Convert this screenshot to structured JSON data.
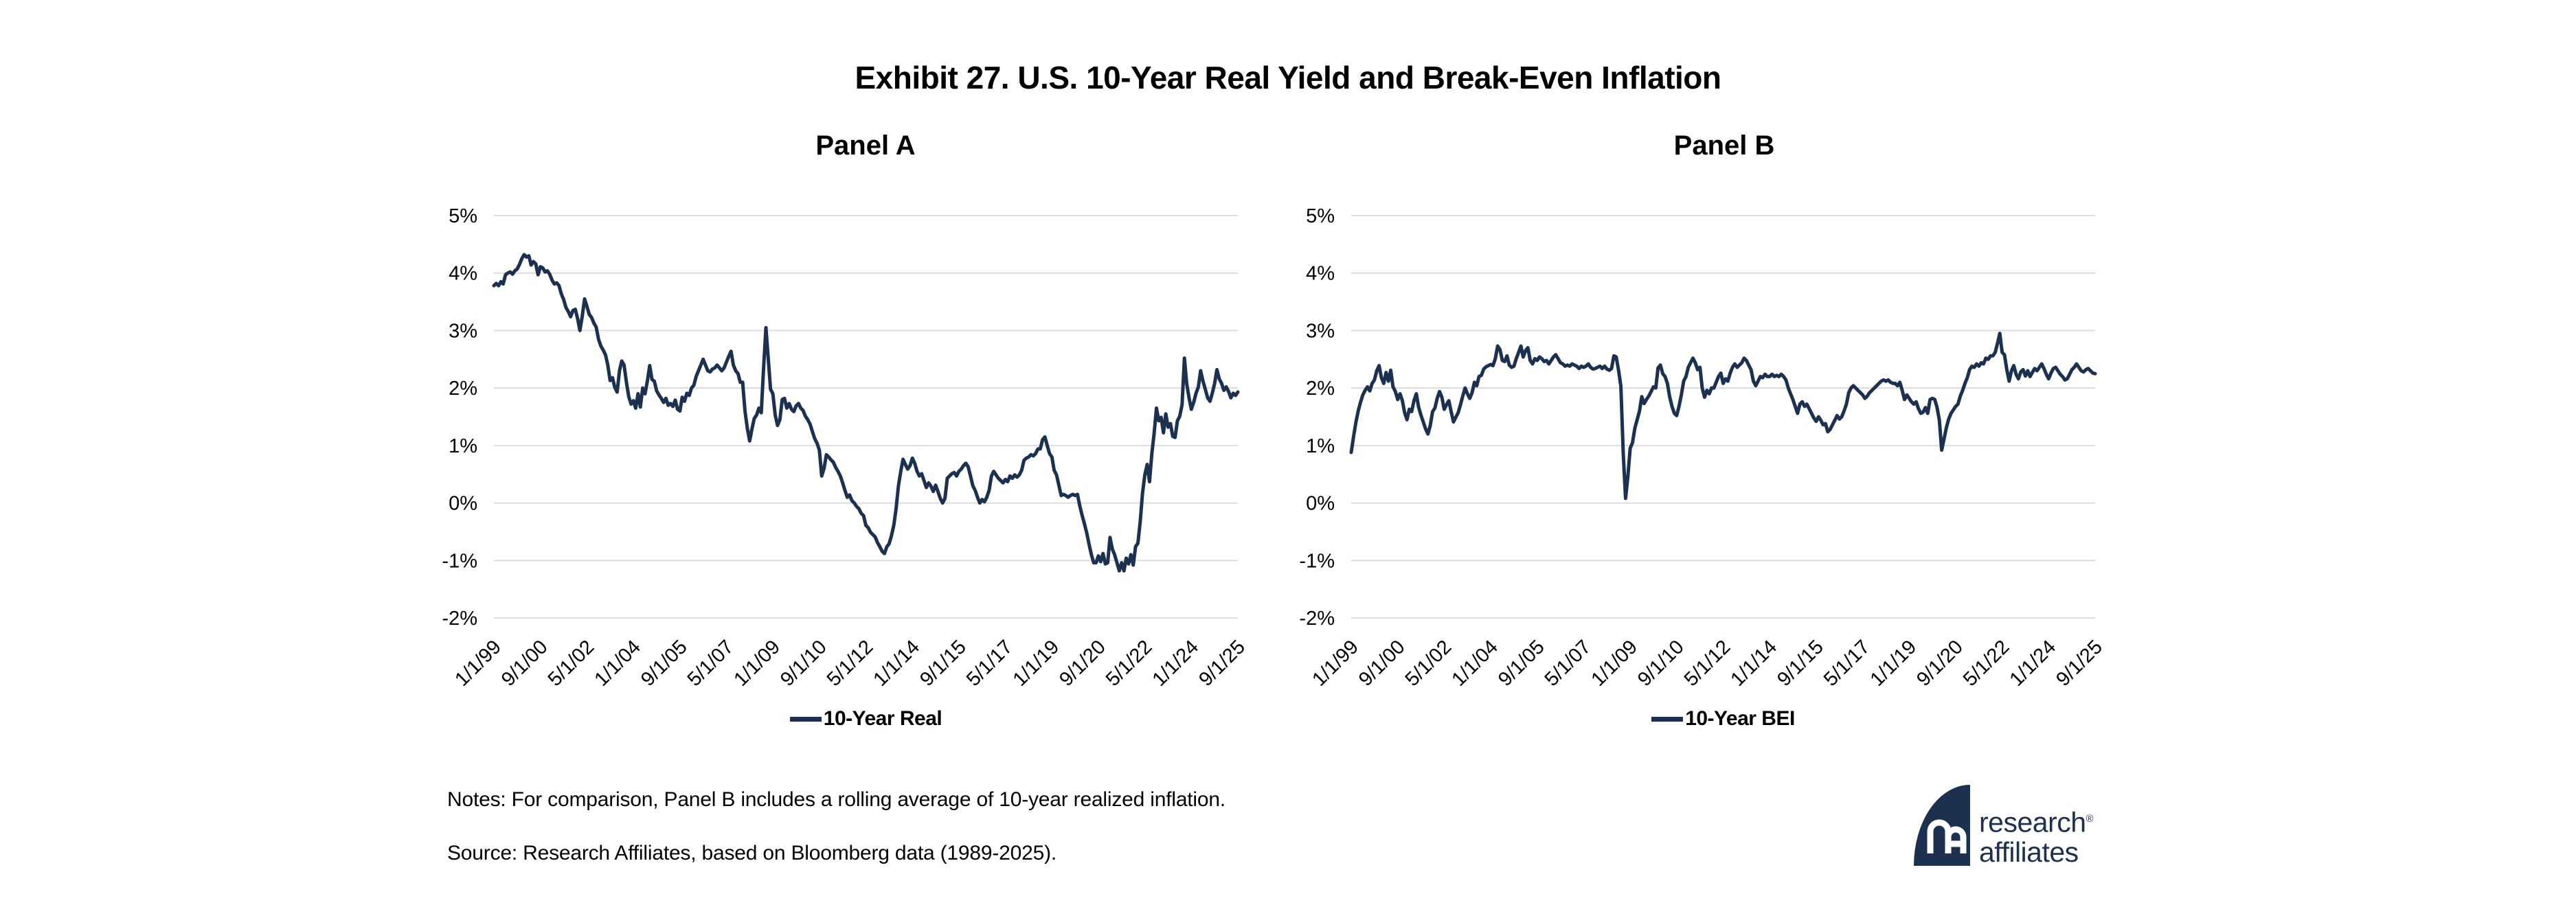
{
  "header": {
    "title": "Exhibit 27. U.S. 10-Year Real Yield and Break-Even Inflation"
  },
  "notes": {
    "notes_line": "Notes: For comparison, Panel B includes a rolling average of 10-year realized inflation.",
    "source_line": "Source: Research Affiliates, based on Bloomberg data (1989-2025)."
  },
  "logo": {
    "line1": "research",
    "line2": "affiliates",
    "registered_mark": "®",
    "monogram": "RA"
  },
  "colors": {
    "line": "#1c304f",
    "gridline": "#d9d9d9",
    "text": "#000000",
    "background": "#ffffff"
  },
  "chart_data": [
    {
      "type": "line",
      "panel_title": "Panel A",
      "legend": "10-Year Real",
      "legend_position": "bottom-center",
      "grid": "horizontal",
      "ylim": [
        -2,
        5
      ],
      "y_tick_values": [
        5,
        4,
        3,
        2,
        1,
        0,
        -1,
        -2
      ],
      "y_tick_labels": [
        "5%",
        "4%",
        "3%",
        "2%",
        "1%",
        "0%",
        "-1%",
        "-2%"
      ],
      "x_tick_labels": [
        "1/1/99",
        "9/1/00",
        "5/1/02",
        "1/1/04",
        "9/1/05",
        "5/1/07",
        "1/1/09",
        "9/1/10",
        "5/1/12",
        "1/1/14",
        "9/1/15",
        "5/1/17",
        "1/1/19",
        "9/1/20",
        "5/1/22",
        "1/1/24",
        "9/1/25"
      ],
      "x_tick_every_n_months": 20,
      "x_start_month": "1999-01",
      "x_end_month": "2025-09",
      "series": [
        {
          "name": "10-Year Real",
          "values": [
            3.78,
            3.82,
            3.78,
            3.85,
            3.81,
            3.97,
            4.0,
            4.02,
            3.98,
            4.04,
            4.07,
            4.15,
            4.25,
            4.32,
            4.28,
            4.3,
            4.14,
            4.2,
            4.16,
            3.97,
            4.11,
            4.09,
            4.02,
            4.04,
            3.98,
            3.88,
            3.81,
            3.83,
            3.78,
            3.64,
            3.54,
            3.4,
            3.33,
            3.24,
            3.35,
            3.37,
            3.21,
            3.0,
            3.25,
            3.55,
            3.42,
            3.28,
            3.23,
            3.13,
            3.06,
            2.85,
            2.73,
            2.66,
            2.58,
            2.4,
            2.13,
            2.18,
            2.01,
            1.93,
            2.3,
            2.47,
            2.4,
            2.1,
            1.85,
            1.72,
            1.78,
            1.65,
            1.9,
            1.67,
            2.0,
            1.9,
            2.12,
            2.39,
            2.15,
            2.12,
            1.95,
            1.88,
            1.82,
            1.75,
            1.82,
            1.7,
            1.73,
            1.68,
            1.79,
            1.63,
            1.6,
            1.84,
            1.77,
            1.91,
            1.87,
            2.0,
            2.05,
            2.2,
            2.3,
            2.4,
            2.5,
            2.4,
            2.3,
            2.28,
            2.33,
            2.35,
            2.4,
            2.35,
            2.3,
            2.35,
            2.45,
            2.55,
            2.64,
            2.4,
            2.3,
            2.25,
            2.1,
            2.1,
            1.6,
            1.3,
            1.08,
            1.29,
            1.47,
            1.53,
            1.65,
            1.57,
            2.35,
            3.05,
            2.51,
            1.98,
            1.9,
            1.53,
            1.35,
            1.45,
            1.8,
            1.82,
            1.65,
            1.73,
            1.63,
            1.59,
            1.69,
            1.73,
            1.65,
            1.61,
            1.51,
            1.45,
            1.37,
            1.24,
            1.12,
            1.04,
            0.92,
            0.47,
            0.6,
            0.84,
            0.8,
            0.75,
            0.71,
            0.62,
            0.55,
            0.47,
            0.35,
            0.22,
            0.1,
            0.14,
            0.04,
            0.0,
            -0.06,
            -0.1,
            -0.18,
            -0.22,
            -0.39,
            -0.43,
            -0.51,
            -0.55,
            -0.59,
            -0.69,
            -0.76,
            -0.84,
            -0.88,
            -0.76,
            -0.71,
            -0.57,
            -0.39,
            -0.1,
            0.3,
            0.55,
            0.76,
            0.67,
            0.59,
            0.65,
            0.78,
            0.69,
            0.55,
            0.47,
            0.51,
            0.39,
            0.27,
            0.35,
            0.29,
            0.2,
            0.31,
            0.2,
            0.08,
            0.0,
            0.08,
            0.43,
            0.47,
            0.51,
            0.53,
            0.47,
            0.55,
            0.59,
            0.65,
            0.69,
            0.63,
            0.47,
            0.3,
            0.22,
            0.1,
            0.0,
            0.06,
            0.02,
            0.1,
            0.22,
            0.47,
            0.55,
            0.49,
            0.43,
            0.39,
            0.35,
            0.41,
            0.37,
            0.47,
            0.43,
            0.49,
            0.45,
            0.49,
            0.57,
            0.74,
            0.78,
            0.8,
            0.84,
            0.82,
            0.86,
            0.94,
            0.94,
            1.1,
            1.15,
            1.0,
            0.86,
            0.8,
            0.57,
            0.49,
            0.31,
            0.13,
            0.15,
            0.13,
            0.1,
            0.13,
            0.15,
            0.13,
            0.15,
            -0.05,
            -0.21,
            -0.36,
            -0.52,
            -0.72,
            -0.9,
            -1.04,
            -1.04,
            -0.92,
            -1.02,
            -0.88,
            -1.06,
            -1.04,
            -0.6,
            -0.8,
            -0.9,
            -1.04,
            -1.18,
            -1.04,
            -1.18,
            -0.96,
            -1.06,
            -0.9,
            -1.08,
            -0.76,
            -0.7,
            -0.32,
            0.17,
            0.49,
            0.67,
            0.37,
            0.86,
            1.22,
            1.65,
            1.43,
            1.49,
            1.22,
            1.55,
            1.32,
            1.38,
            1.16,
            1.14,
            1.43,
            1.51,
            1.71,
            2.52,
            2.08,
            1.83,
            1.63,
            1.75,
            1.91,
            2.02,
            2.3,
            2.12,
            1.98,
            1.83,
            1.77,
            1.91,
            2.08,
            2.32,
            2.16,
            2.08,
            1.96,
            2.02,
            1.94,
            1.83,
            1.91,
            1.87,
            1.93
          ]
        }
      ]
    },
    {
      "type": "line",
      "panel_title": "Panel B",
      "legend": "10-Year BEI",
      "legend_position": "bottom-center",
      "grid": "horizontal",
      "ylim": [
        -2,
        5
      ],
      "y_tick_values": [
        5,
        4,
        3,
        2,
        1,
        0,
        -1,
        -2
      ],
      "y_tick_labels": [
        "5%",
        "4%",
        "3%",
        "2%",
        "1%",
        "0%",
        "-1%",
        "-2%"
      ],
      "x_tick_labels": [
        "1/1/99",
        "9/1/00",
        "5/1/02",
        "1/1/04",
        "9/1/05",
        "5/1/07",
        "1/1/09",
        "9/1/10",
        "5/1/12",
        "1/1/14",
        "9/1/15",
        "5/1/17",
        "1/1/19",
        "9/1/20",
        "5/1/22",
        "1/1/24",
        "9/1/25"
      ],
      "x_tick_every_n_months": 20,
      "x_start_month": "1999-01",
      "x_end_month": "2025-09",
      "series": [
        {
          "name": "10-Year BEI",
          "values": [
            0.88,
            1.15,
            1.4,
            1.6,
            1.75,
            1.88,
            1.96,
            2.02,
            1.95,
            2.08,
            2.14,
            2.3,
            2.39,
            2.18,
            2.08,
            2.27,
            2.12,
            2.31,
            2.02,
            1.94,
            1.8,
            1.9,
            1.78,
            1.57,
            1.45,
            1.63,
            1.59,
            1.78,
            1.9,
            1.67,
            1.53,
            1.41,
            1.29,
            1.2,
            1.35,
            1.59,
            1.65,
            1.82,
            1.94,
            1.84,
            1.63,
            1.71,
            1.78,
            1.59,
            1.41,
            1.49,
            1.57,
            1.71,
            1.86,
            2.0,
            1.9,
            1.82,
            1.92,
            2.1,
            2.04,
            2.2,
            2.22,
            2.33,
            2.37,
            2.39,
            2.41,
            2.39,
            2.51,
            2.73,
            2.67,
            2.48,
            2.46,
            2.56,
            2.4,
            2.36,
            2.38,
            2.51,
            2.62,
            2.73,
            2.54,
            2.65,
            2.7,
            2.48,
            2.42,
            2.51,
            2.48,
            2.54,
            2.51,
            2.46,
            2.48,
            2.42,
            2.48,
            2.54,
            2.58,
            2.51,
            2.44,
            2.42,
            2.38,
            2.4,
            2.38,
            2.42,
            2.4,
            2.38,
            2.34,
            2.38,
            2.36,
            2.38,
            2.42,
            2.36,
            2.33,
            2.34,
            2.36,
            2.38,
            2.34,
            2.38,
            2.33,
            2.31,
            2.34,
            2.56,
            2.54,
            2.31,
            2.03,
            0.87,
            0.08,
            0.45,
            0.95,
            1.05,
            1.3,
            1.45,
            1.6,
            1.85,
            1.73,
            1.8,
            1.86,
            1.94,
            2.02,
            2.0,
            2.35,
            2.4,
            2.25,
            2.2,
            2.08,
            1.84,
            1.68,
            1.56,
            1.52,
            1.68,
            1.88,
            2.12,
            2.2,
            2.36,
            2.44,
            2.52,
            2.44,
            2.32,
            2.36,
            2.0,
            1.84,
            1.96,
            1.9,
            2.0,
            2.0,
            2.1,
            2.2,
            2.26,
            2.08,
            2.16,
            2.12,
            2.26,
            2.36,
            2.42,
            2.36,
            2.4,
            2.44,
            2.52,
            2.48,
            2.4,
            2.32,
            2.12,
            2.04,
            2.12,
            2.2,
            2.18,
            2.24,
            2.2,
            2.2,
            2.24,
            2.2,
            2.22,
            2.2,
            2.24,
            2.2,
            2.14,
            2.0,
            1.9,
            1.8,
            1.68,
            1.56,
            1.72,
            1.76,
            1.68,
            1.72,
            1.64,
            1.56,
            1.48,
            1.42,
            1.5,
            1.44,
            1.36,
            1.38,
            1.24,
            1.28,
            1.36,
            1.44,
            1.52,
            1.46,
            1.5,
            1.6,
            1.72,
            1.92,
            2.0,
            2.04,
            2.0,
            1.96,
            1.92,
            1.88,
            1.82,
            1.86,
            1.92,
            1.96,
            2.0,
            2.04,
            2.08,
            2.12,
            2.14,
            2.12,
            2.14,
            2.1,
            2.08,
            2.08,
            2.04,
            2.1,
            1.96,
            1.8,
            1.88,
            1.82,
            1.76,
            1.72,
            1.76,
            1.64,
            1.56,
            1.58,
            1.66,
            1.56,
            1.8,
            1.82,
            1.8,
            1.66,
            1.44,
            0.92,
            1.11,
            1.31,
            1.46,
            1.56,
            1.62,
            1.68,
            1.72,
            1.86,
            1.96,
            2.08,
            2.18,
            2.32,
            2.38,
            2.36,
            2.42,
            2.38,
            2.44,
            2.42,
            2.52,
            2.5,
            2.56,
            2.56,
            2.62,
            2.78,
            2.95,
            2.62,
            2.58,
            2.32,
            2.12,
            2.3,
            2.39,
            2.24,
            2.16,
            2.28,
            2.32,
            2.21,
            2.3,
            2.2,
            2.27,
            2.34,
            2.3,
            2.36,
            2.42,
            2.34,
            2.24,
            2.16,
            2.26,
            2.34,
            2.36,
            2.3,
            2.24,
            2.2,
            2.14,
            2.16,
            2.24,
            2.32,
            2.36,
            2.42,
            2.36,
            2.3,
            2.28,
            2.32,
            2.34,
            2.3,
            2.26,
            2.25
          ]
        }
      ]
    }
  ]
}
